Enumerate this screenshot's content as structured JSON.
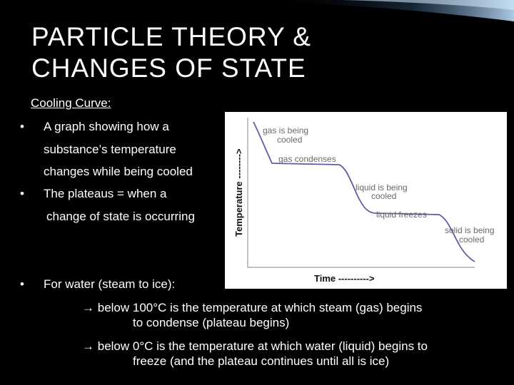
{
  "slide": {
    "title_line1": "PARTICLE THEORY &",
    "title_line2": "CHANGES OF STATE",
    "subheading": "Cooling Curve:",
    "bullets": {
      "b1_line1": "A graph showing how a",
      "b1_line2": "substance’s temperature",
      "b1_line3": "changes while being cooled",
      "b2_line1": "The plateaus = when a",
      "b2_line2": "change of state is occurring",
      "b3": "For water (steam to ice):"
    },
    "arrow_points": [
      {
        "arrow": "→",
        "line1": "below 100°C is the temperature at which steam (gas) begins",
        "line2": "to condense (plateau begins)"
      },
      {
        "arrow": "→",
        "line1": "below 0°C is the temperature at which water (liquid) begins to",
        "line2": "freeze (and the plateau continues until all is ice)"
      }
    ],
    "bullet_glyph": "•"
  },
  "chart_data": {
    "type": "line",
    "xlabel": "Time ---------->",
    "ylabel": "Temperature -------->",
    "series": [
      {
        "values_description_only_in_script": true
      }
    ],
    "annotations": [
      {
        "text_line1": "gas is being",
        "text_line2": "cooled"
      },
      {
        "text_line1": "gas condenses",
        "text_line2": ""
      },
      {
        "text_line1": "liquid is being",
        "text_line2": "cooled"
      },
      {
        "text_line1": "liquid freezes",
        "text_line2": ""
      },
      {
        "text_line1": "solid is being",
        "text_line2": "cooled"
      }
    ],
    "line_color": "#5b5fa8",
    "annotation_color": "#6a6a6a"
  }
}
